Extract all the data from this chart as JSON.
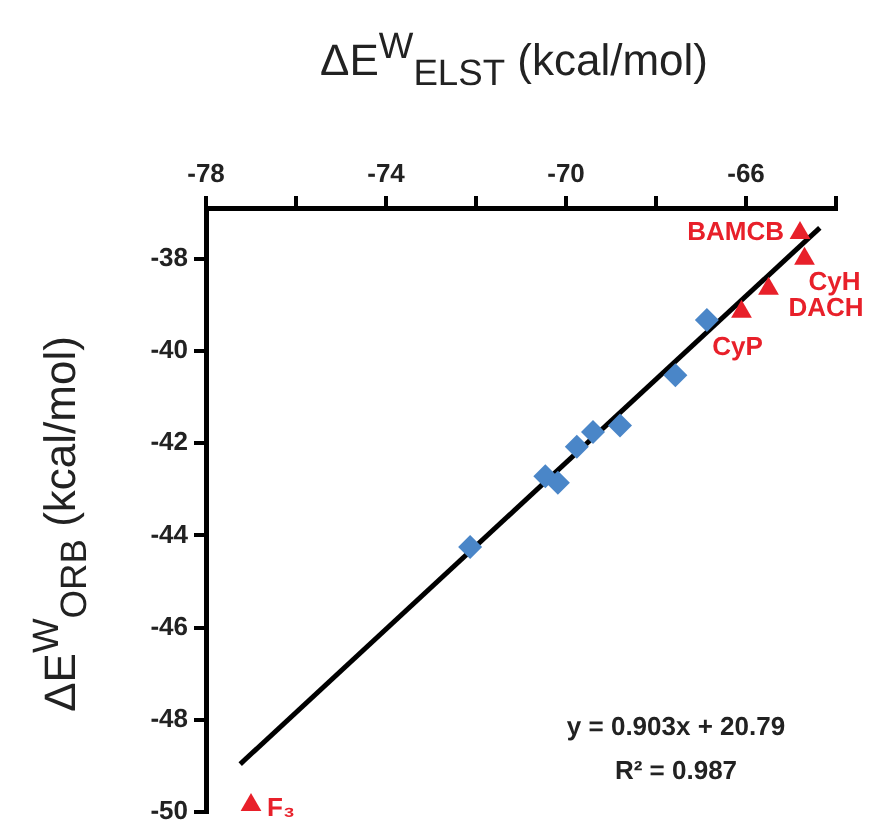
{
  "chart_data": {
    "type": "scatter",
    "xlabel": "ΔE$^{W}$$_{ELST}$ (kcal/mol)",
    "ylabel": "ΔE$^{W}$$_{ORB}$ (kcal/mol)",
    "xlim": [
      -78,
      -64
    ],
    "ylim": [
      -50,
      -36.9
    ],
    "xticks": [
      -78,
      {
        "value": -76,
        "label": null
      },
      -74,
      {
        "value": -72,
        "label": null
      },
      -70,
      {
        "value": -68,
        "label": null
      },
      -66,
      {
        "value": -64,
        "label": null
      }
    ],
    "yticks": [
      -50,
      -48,
      -46,
      -44,
      -42,
      -40,
      -38
    ],
    "grid": false,
    "legend": false,
    "series": [
      {
        "marker": "diamond",
        "color": "#4a86c8",
        "x": [
          -66.87,
          -67.57,
          -68.8,
          -69.4,
          -69.76,
          -70.46,
          -70.18,
          -72.13
        ],
        "values": [
          -39.33,
          -40.53,
          -41.62,
          -41.76,
          -42.08,
          -42.72,
          -42.86,
          -44.25
        ]
      },
      {
        "marker": "triangle",
        "color": "#e8202a",
        "x": [
          -64.8,
          -64.7,
          -65.5,
          -66.1,
          -77.0
        ],
        "values": [
          -37.44,
          -38.0,
          -38.65,
          -39.15,
          -49.85
        ]
      },
      {
        "type": "line",
        "marker": "none",
        "line_style": "solid",
        "color": "#000000",
        "x": [
          -77.24,
          -64.36
        ],
        "values": [
          -48.96,
          -37.33
        ]
      }
    ],
    "annotations": [
      {
        "text": "BAMCB",
        "x": -64.8,
        "y": -37.44
      },
      {
        "text": "CyH",
        "x": -64.7,
        "y": -38.0
      },
      {
        "text": "DACH",
        "x": -65.5,
        "y": -38.65
      },
      {
        "text": "CyP",
        "x": -66.1,
        "y": -39.15
      },
      {
        "text": "F₃",
        "x": -77.0,
        "y": -49.85
      },
      "y = 0.903x + 20.79",
      "R² = 0.987"
    ]
  }
}
